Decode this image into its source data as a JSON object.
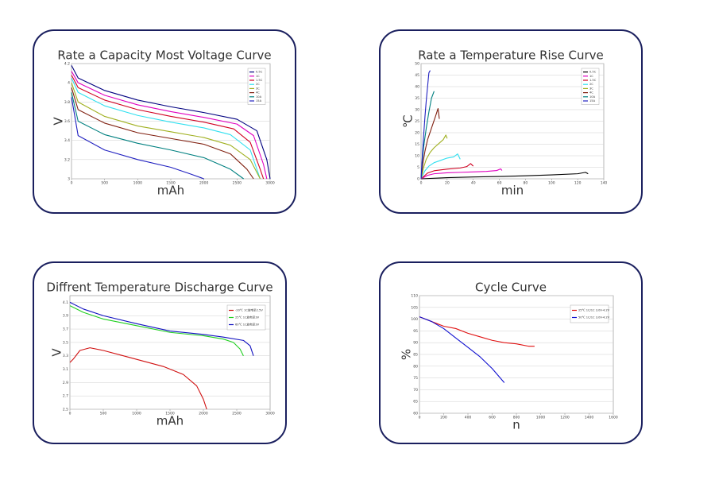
{
  "chart_data": [
    {
      "type": "line",
      "title": "Rate a Capacity Most Voltage Curve",
      "x_label": "mAh",
      "y_label": "V",
      "xlim": [
        0,
        3000
      ],
      "xticks": [
        0,
        500,
        1000,
        1500,
        2000,
        2500,
        3000
      ],
      "ylim": [
        3,
        4.2
      ],
      "yticks": [
        3,
        3.2,
        3.4,
        3.6,
        3.8,
        4,
        4.2
      ],
      "grid": true,
      "legend": "upper right",
      "series": [
        {
          "name": "0.5C",
          "color": "#000080",
          "x": [
            0,
            100,
            500,
            1000,
            1500,
            2000,
            2500,
            2800,
            2950,
            3000
          ],
          "values": [
            4.18,
            4.05,
            3.92,
            3.82,
            3.75,
            3.69,
            3.62,
            3.5,
            3.2,
            3.0
          ]
        },
        {
          "name": "1C",
          "color": "#e000c0",
          "x": [
            0,
            100,
            500,
            1000,
            1500,
            2000,
            2500,
            2750,
            2900,
            2950
          ],
          "values": [
            4.12,
            4.0,
            3.87,
            3.77,
            3.7,
            3.64,
            3.57,
            3.45,
            3.15,
            3.0
          ]
        },
        {
          "name": "1.5C",
          "color": "#d00020",
          "x": [
            0,
            100,
            500,
            1000,
            1500,
            2000,
            2450,
            2700,
            2850,
            2900
          ],
          "values": [
            4.08,
            3.95,
            3.82,
            3.72,
            3.65,
            3.59,
            3.52,
            3.38,
            3.1,
            3.0
          ]
        },
        {
          "name": "2C",
          "color": "#30e0f0",
          "x": [
            0,
            100,
            500,
            1000,
            1500,
            2000,
            2400,
            2700,
            2850
          ],
          "values": [
            4.05,
            3.9,
            3.76,
            3.66,
            3.59,
            3.53,
            3.46,
            3.3,
            3.0
          ]
        },
        {
          "name": "3C",
          "color": "#a0b020",
          "x": [
            0,
            100,
            500,
            1000,
            1500,
            2000,
            2400,
            2700,
            2850
          ],
          "values": [
            4.0,
            3.8,
            3.65,
            3.55,
            3.49,
            3.43,
            3.35,
            3.2,
            3.0
          ]
        },
        {
          "name": "4C",
          "color": "#802010",
          "x": [
            0,
            100,
            500,
            1000,
            1500,
            2000,
            2400,
            2650,
            2750
          ],
          "values": [
            3.95,
            3.72,
            3.58,
            3.48,
            3.42,
            3.36,
            3.26,
            3.1,
            3.0
          ]
        },
        {
          "name": "10A",
          "color": "#008080",
          "x": [
            0,
            100,
            500,
            1000,
            1500,
            2000,
            2400,
            2600
          ],
          "values": [
            3.9,
            3.6,
            3.46,
            3.37,
            3.3,
            3.22,
            3.1,
            3.0
          ]
        },
        {
          "name": "15A",
          "color": "#2020c0",
          "x": [
            0,
            100,
            500,
            1000,
            1500,
            1800,
            2000
          ],
          "values": [
            3.85,
            3.45,
            3.3,
            3.2,
            3.12,
            3.05,
            3.0
          ]
        }
      ]
    },
    {
      "type": "line",
      "title": "Rate a Temperature Rise Curve",
      "x_label": "min",
      "y_label": "℃",
      "xlim": [
        0,
        140
      ],
      "xticks": [
        0,
        20,
        40,
        60,
        80,
        100,
        120,
        140
      ],
      "ylim": [
        0,
        50
      ],
      "yticks": [
        0,
        5,
        10,
        15,
        20,
        25,
        30,
        35,
        40,
        45,
        50
      ],
      "grid": true,
      "legend": "upper right",
      "series": [
        {
          "name": "0.5C",
          "color": "#000000",
          "x": [
            0,
            20,
            40,
            60,
            80,
            100,
            120,
            126,
            128
          ],
          "values": [
            0,
            0.5,
            0.8,
            1.0,
            1.3,
            1.7,
            2.2,
            2.8,
            2.2
          ]
        },
        {
          "name": "1C",
          "color": "#e000c0",
          "x": [
            0,
            5,
            10,
            20,
            30,
            40,
            50,
            58,
            61,
            62
          ],
          "values": [
            0,
            1.5,
            2.2,
            2.6,
            2.8,
            3.0,
            3.2,
            3.6,
            4.3,
            3.6
          ]
        },
        {
          "name": "1.5C",
          "color": "#d00020",
          "x": [
            0,
            5,
            10,
            20,
            30,
            35,
            38,
            40
          ],
          "values": [
            0,
            2.5,
            3.5,
            4.2,
            4.7,
            5.3,
            6.6,
            5.5
          ]
        },
        {
          "name": "2C",
          "color": "#30e0f0",
          "x": [
            0,
            3,
            6,
            10,
            15,
            20,
            25,
            28,
            30
          ],
          "values": [
            0,
            3.5,
            5.5,
            7.0,
            8.0,
            9.0,
            9.5,
            10.8,
            8.5
          ]
        },
        {
          "name": "3C",
          "color": "#a0b020",
          "x": [
            0,
            2,
            4,
            7,
            10,
            14,
            17,
            19,
            20
          ],
          "values": [
            0,
            5,
            8.5,
            11.5,
            13.5,
            15.5,
            17,
            19,
            17.5
          ]
        },
        {
          "name": "4C",
          "color": "#802010",
          "x": [
            0,
            1.5,
            3,
            5,
            8,
            11,
            13,
            14
          ],
          "values": [
            0,
            7,
            12,
            17,
            22,
            27,
            30.5,
            26
          ]
        },
        {
          "name": "10A",
          "color": "#008080",
          "x": [
            0,
            1,
            2,
            4,
            6,
            8,
            10
          ],
          "values": [
            0,
            8,
            14,
            22,
            29,
            35,
            38
          ]
        },
        {
          "name": "15A",
          "color": "#2020c0",
          "x": [
            0,
            1,
            2,
            3,
            4,
            5,
            6,
            7
          ],
          "values": [
            0,
            10,
            19,
            27,
            34,
            40,
            46,
            47
          ]
        }
      ]
    },
    {
      "type": "line",
      "title": "Diffrent Temperature Discharge Curve",
      "x_label": "mAh",
      "y_label": "V",
      "xlim": [
        0,
        3000
      ],
      "xticks": [
        0,
        500,
        1000,
        1500,
        2000,
        2500,
        3000
      ],
      "ylim": [
        2.5,
        4.2
      ],
      "yticks": [
        2.5,
        2.7,
        2.9,
        3.1,
        3.3,
        3.5,
        3.7,
        3.9,
        4.1
      ],
      "grid": true,
      "legend": "upper right",
      "series": [
        {
          "name": "-20℃ 1C放电至2.5V",
          "color": "#d01010",
          "x": [
            0,
            50,
            150,
            300,
            500,
            800,
            1100,
            1400,
            1700,
            1900,
            2000,
            2050
          ],
          "values": [
            3.2,
            3.25,
            3.38,
            3.42,
            3.38,
            3.3,
            3.22,
            3.14,
            3.02,
            2.85,
            2.65,
            2.5
          ]
        },
        {
          "name": "25℃ 1C放电至3V",
          "color": "#20d020",
          "x": [
            0,
            200,
            500,
            1000,
            1500,
            2000,
            2300,
            2450,
            2550,
            2600
          ],
          "values": [
            4.05,
            3.95,
            3.85,
            3.75,
            3.65,
            3.6,
            3.55,
            3.5,
            3.4,
            3.3
          ]
        },
        {
          "name": "60℃ 1C放电至3V",
          "color": "#1010c0",
          "x": [
            0,
            200,
            500,
            1000,
            1500,
            2000,
            2300,
            2600,
            2700,
            2750
          ],
          "values": [
            4.1,
            4.0,
            3.9,
            3.78,
            3.67,
            3.62,
            3.58,
            3.53,
            3.45,
            3.3
          ]
        }
      ]
    },
    {
      "type": "line",
      "title": "Cycle Curve",
      "x_label": "n",
      "y_label": "%",
      "xlim": [
        0,
        1600
      ],
      "xticks": [
        0,
        200,
        400,
        600,
        800,
        1000,
        1200,
        1400,
        1600
      ],
      "ylim": [
        60,
        110
      ],
      "yticks": [
        60,
        65,
        70,
        75,
        80,
        85,
        90,
        95,
        100,
        105,
        110
      ],
      "grid": true,
      "legend": "upper right",
      "series": [
        {
          "name": "25℃ 1C/1C 3.0V-4.2V",
          "color": "#e01010",
          "x": [
            0,
            100,
            200,
            300,
            400,
            500,
            600,
            700,
            800,
            900,
            950
          ],
          "values": [
            101,
            99,
            97,
            96,
            94,
            92.5,
            91,
            90,
            89.5,
            88.5,
            88.5
          ]
        },
        {
          "name": "50℃ 1C/1C 3.0V-4.2V",
          "color": "#1010d0",
          "x": [
            0,
            100,
            200,
            300,
            400,
            500,
            600,
            700
          ],
          "values": [
            101,
            99,
            96,
            92,
            88,
            84,
            79,
            73
          ]
        }
      ]
    }
  ]
}
